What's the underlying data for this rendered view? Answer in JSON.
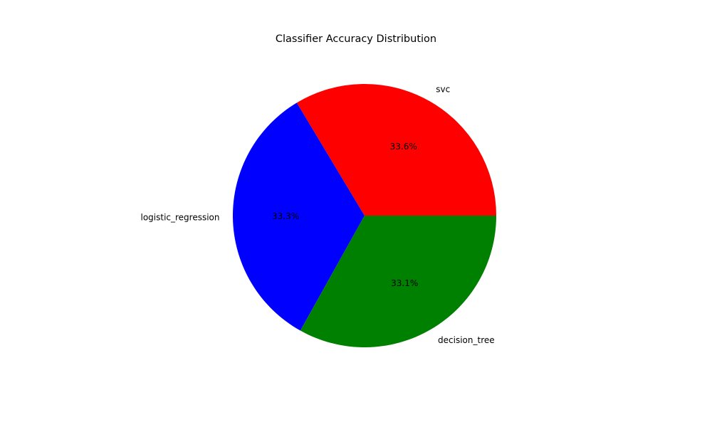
{
  "chart_data": {
    "type": "pie",
    "title": "Classifier Accuracy Distribution",
    "slices": [
      {
        "label": "svc",
        "percent_label": "33.6%",
        "value": 33.6,
        "color": "#ff0000"
      },
      {
        "label": "logistic_regression",
        "percent_label": "33.3%",
        "value": 33.3,
        "color": "#0000ff"
      },
      {
        "label": "decision_tree",
        "percent_label": "33.1%",
        "value": 33.1,
        "color": "#008000"
      }
    ],
    "start_angle_deg": 0,
    "direction": "counterclockwise"
  }
}
